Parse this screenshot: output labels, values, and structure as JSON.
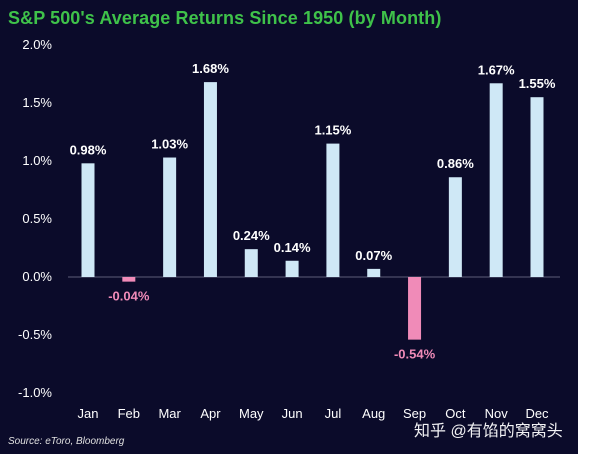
{
  "colors": {
    "background": "#0b0b2a",
    "title": "#3fc24a",
    "positive_bar": "#cfe8f6",
    "negative_bar": "#f08bb8",
    "positive_label": "#ffffff",
    "negative_label": "#f08bb8",
    "axis_text": "#ffffff",
    "source_text": "#e0e0e0"
  },
  "watermark": "知乎 @有馅的窝窝头",
  "chart_data": {
    "type": "bar",
    "title": "S&P 500's Average Returns Since 1950 (by Month)",
    "source": "Source: eToro, Bloomberg",
    "xlabel": "",
    "ylabel": "",
    "ylim": [
      -1.0,
      2.0
    ],
    "y_ticks": [
      2.0,
      1.5,
      1.0,
      0.5,
      0.0,
      -0.5,
      -1.0
    ],
    "y_tick_labels": [
      "2.0%",
      "1.5%",
      "1.0%",
      "0.5%",
      "0.0%",
      "-0.5%",
      "-1.0%"
    ],
    "grid": false,
    "legend": "none",
    "categories": [
      "Jan",
      "Feb",
      "Mar",
      "Apr",
      "May",
      "Jun",
      "Jul",
      "Aug",
      "Sep",
      "Oct",
      "Nov",
      "Dec"
    ],
    "values": [
      0.98,
      -0.04,
      1.03,
      1.68,
      0.24,
      0.14,
      1.15,
      0.07,
      -0.54,
      0.86,
      1.67,
      1.55
    ],
    "data_labels": [
      "0.98%",
      "-0.04%",
      "1.03%",
      "1.68%",
      "0.24%",
      "0.14%",
      "1.15%",
      "0.07%",
      "-0.54%",
      "0.86%",
      "1.67%",
      "1.55%"
    ]
  }
}
